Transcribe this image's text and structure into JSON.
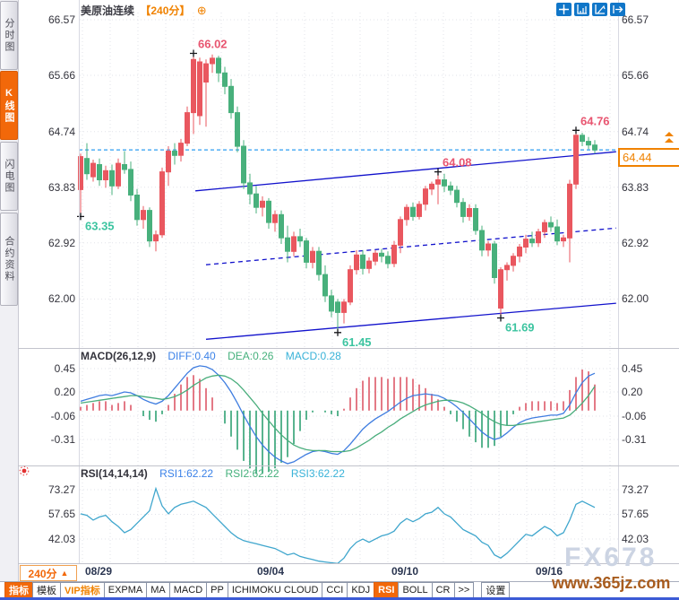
{
  "window": {
    "instrument": "美原油连续",
    "period": "【240分】",
    "add_icon": "circled-plus"
  },
  "colors": {
    "accent_orange": "#f2680a",
    "label_orange": "#f08200",
    "up_candle": "#e9575f",
    "down_candle": "#48b07c",
    "high_label": "#e85570",
    "low_label": "#3cc4a0",
    "current_price_line": "#2e9df2",
    "trend_line": "#1212cc",
    "diff_line": "#3f7de0",
    "dea_line": "#49ad7c",
    "rsi_line": "#3fa6cd",
    "hist_up": "#dd5868",
    "hist_down": "#2fa273",
    "icon_blue": "#1076c8"
  },
  "sidebar": {
    "items": [
      {
        "label": "分时图",
        "active": false
      },
      {
        "label": "K线图",
        "active": true
      },
      {
        "label": "闪电图",
        "active": false
      },
      {
        "label": "合约资料",
        "active": false
      }
    ]
  },
  "top_icons": [
    {
      "name": "crosshair-icon"
    },
    {
      "name": "scale-axis-icon"
    },
    {
      "name": "scale-bars-icon"
    },
    {
      "name": "exit-chart-icon"
    }
  ],
  "axes": {
    "main": [
      "66.57",
      "65.66",
      "64.74",
      "63.83",
      "62.92",
      "62.00"
    ],
    "macd": [
      "0.45",
      "0.20",
      "-0.06",
      "-0.31"
    ],
    "rsi": [
      "73.27",
      "57.65",
      "42.03"
    ],
    "dates": [
      "08/29",
      "09/04",
      "09/10",
      "09/16"
    ]
  },
  "macd_header": {
    "name": "MACD(26,12,9)",
    "diff": "DIFF:0.40",
    "dea": "DEA:0.26",
    "macd": "MACD:0.28"
  },
  "rsi_header": {
    "name": "RSI(14,14,14)",
    "rsi1": "RSI1:62.22",
    "rsi2": "RSI2:62.22",
    "rsi3": "RSI3:62.22"
  },
  "price_box": {
    "value": "64.44"
  },
  "period_button": {
    "label": "240分",
    "arrow": "▲"
  },
  "bottom_toolbar": {
    "items": [
      {
        "label": "指标",
        "state": "active"
      },
      {
        "label": "模板",
        "state": ""
      },
      {
        "label": "VIP指标",
        "state": "vip"
      },
      {
        "label": "EXPMA",
        "state": ""
      },
      {
        "label": "MA",
        "state": ""
      },
      {
        "label": "MACD",
        "state": ""
      },
      {
        "label": "PP",
        "state": ""
      },
      {
        "label": "ICHIMOKU CLOUD",
        "state": ""
      },
      {
        "label": "CCI",
        "state": ""
      },
      {
        "label": "KDJ",
        "state": ""
      },
      {
        "label": "RSI",
        "state": "active"
      },
      {
        "label": "BOLL",
        "state": ""
      },
      {
        "label": "CR",
        "state": ""
      },
      {
        "label": ">>",
        "state": ""
      },
      {
        "label": "设置",
        "state": "gap"
      }
    ]
  },
  "watermark": {
    "line1": "FX678",
    "line2": "www.365jz.com"
  },
  "chart_data": [
    {
      "type": "candlestick",
      "title": "美原油连续 240分",
      "ylim": [
        61.2,
        66.7
      ],
      "y_ticks": [
        66.57,
        65.66,
        64.74,
        63.83,
        62.92,
        62.0
      ],
      "x_ticks": [
        "08/29",
        "09/04",
        "09/10",
        "09/16"
      ],
      "current_price": 64.44,
      "ohlc": [
        [
          63.79,
          64.38,
          63.35,
          64.33
        ],
        [
          64.3,
          64.55,
          63.95,
          64.05
        ],
        [
          64.0,
          64.28,
          63.92,
          64.22
        ],
        [
          64.2,
          64.3,
          63.85,
          63.95
        ],
        [
          63.95,
          64.18,
          63.82,
          64.1
        ],
        [
          64.1,
          64.2,
          63.7,
          63.85
        ],
        [
          63.85,
          64.3,
          63.8,
          64.22
        ],
        [
          64.2,
          64.42,
          64.05,
          64.12
        ],
        [
          64.12,
          64.25,
          63.6,
          63.7
        ],
        [
          63.7,
          63.8,
          63.2,
          63.3
        ],
        [
          63.3,
          63.52,
          63.15,
          63.45
        ],
        [
          63.45,
          63.5,
          62.85,
          62.95
        ],
        [
          62.95,
          63.12,
          62.78,
          63.05
        ],
        [
          63.05,
          64.15,
          63.0,
          64.08
        ],
        [
          64.08,
          64.5,
          63.85,
          64.42
        ],
        [
          64.42,
          64.55,
          64.2,
          64.35
        ],
        [
          64.35,
          64.62,
          64.25,
          64.55
        ],
        [
          64.55,
          65.15,
          64.5,
          65.05
        ],
        [
          65.05,
          66.02,
          64.7,
          65.92
        ],
        [
          65.0,
          65.95,
          64.85,
          65.88
        ],
        [
          65.55,
          65.92,
          64.82,
          65.85
        ],
        [
          65.85,
          66.0,
          65.7,
          65.94
        ],
        [
          65.94,
          65.98,
          65.55,
          65.7
        ],
        [
          65.7,
          65.8,
          65.35,
          65.48
        ],
        [
          65.48,
          65.6,
          64.95,
          65.05
        ],
        [
          65.05,
          65.15,
          64.4,
          64.5
        ],
        [
          64.5,
          64.6,
          63.8,
          63.9
        ],
        [
          63.9,
          64.05,
          63.55,
          63.72
        ],
        [
          63.72,
          63.85,
          63.4,
          63.5
        ],
        [
          63.5,
          63.68,
          63.35,
          63.6
        ],
        [
          63.6,
          63.65,
          63.15,
          63.25
        ],
        [
          63.25,
          63.45,
          63.1,
          63.38
        ],
        [
          63.38,
          63.45,
          62.9,
          63.0
        ],
        [
          63.0,
          63.2,
          62.6,
          62.78
        ],
        [
          62.78,
          63.1,
          62.7,
          63.02
        ],
        [
          63.02,
          63.15,
          62.85,
          62.95
        ],
        [
          62.95,
          63.0,
          62.5,
          62.6
        ],
        [
          62.6,
          62.85,
          62.5,
          62.78
        ],
        [
          62.78,
          62.85,
          62.3,
          62.4
        ],
        [
          62.4,
          62.55,
          61.95,
          62.05
        ],
        [
          62.05,
          62.15,
          61.7,
          61.8
        ],
        [
          61.95,
          62.0,
          61.45,
          61.78
        ],
        [
          61.78,
          62.0,
          61.6,
          61.95
        ],
        [
          61.95,
          62.55,
          61.9,
          62.48
        ],
        [
          62.48,
          62.8,
          62.4,
          62.72
        ],
        [
          62.72,
          62.8,
          62.4,
          62.5
        ],
        [
          62.5,
          62.68,
          62.42,
          62.62
        ],
        [
          62.62,
          62.8,
          62.55,
          62.75
        ],
        [
          62.75,
          62.82,
          62.6,
          62.7
        ],
        [
          62.7,
          62.78,
          62.5,
          62.58
        ],
        [
          62.58,
          62.95,
          62.52,
          62.88
        ],
        [
          62.88,
          63.35,
          62.75,
          63.3
        ],
        [
          63.3,
          63.55,
          63.2,
          63.5
        ],
        [
          63.5,
          63.58,
          63.28,
          63.35
        ],
        [
          63.35,
          63.6,
          63.3,
          63.55
        ],
        [
          63.55,
          63.85,
          63.45,
          63.8
        ],
        [
          63.8,
          63.92,
          63.7,
          63.88
        ],
        [
          63.88,
          64.08,
          63.55,
          63.95
        ],
        [
          63.95,
          64.05,
          63.75,
          63.85
        ],
        [
          63.85,
          63.92,
          63.7,
          63.78
        ],
        [
          63.78,
          63.85,
          63.5,
          63.58
        ],
        [
          63.58,
          63.65,
          63.25,
          63.35
        ],
        [
          63.35,
          63.55,
          63.28,
          63.48
        ],
        [
          63.48,
          63.55,
          63.05,
          63.12
        ],
        [
          63.12,
          63.2,
          62.7,
          62.8
        ],
        [
          62.8,
          62.95,
          62.7,
          62.9
        ],
        [
          62.9,
          62.95,
          62.25,
          62.35
        ],
        [
          61.85,
          62.52,
          61.69,
          62.48
        ],
        [
          62.48,
          62.6,
          62.3,
          62.55
        ],
        [
          62.55,
          62.75,
          62.45,
          62.7
        ],
        [
          62.7,
          62.9,
          62.6,
          62.85
        ],
        [
          62.85,
          63.05,
          62.75,
          62.98
        ],
        [
          62.98,
          63.1,
          62.85,
          62.92
        ],
        [
          62.92,
          63.15,
          62.85,
          63.1
        ],
        [
          63.1,
          63.3,
          63.0,
          63.25
        ],
        [
          63.25,
          63.35,
          63.1,
          63.18
        ],
        [
          63.18,
          63.3,
          62.88,
          62.95
        ],
        [
          62.95,
          63.05,
          62.85,
          63.0
        ],
        [
          63.0,
          63.95,
          62.6,
          63.88
        ],
        [
          63.88,
          64.76,
          63.8,
          64.68
        ],
        [
          64.68,
          64.72,
          64.5,
          64.58
        ],
        [
          64.58,
          64.65,
          64.45,
          64.52
        ],
        [
          64.52,
          64.6,
          64.38,
          64.44
        ]
      ],
      "annotations": [
        {
          "index": 18,
          "price": 66.02,
          "text": "66.02",
          "kind": "high"
        },
        {
          "index": 0,
          "price": 63.35,
          "text": "63.35",
          "kind": "low"
        },
        {
          "index": 41,
          "price": 61.45,
          "text": "61.45",
          "kind": "low"
        },
        {
          "index": 67,
          "price": 61.69,
          "text": "61.69",
          "kind": "low"
        },
        {
          "index": 57,
          "price": 64.08,
          "text": "64.08",
          "kind": "high"
        },
        {
          "index": 79,
          "price": 64.76,
          "text": "64.76",
          "kind": "high"
        }
      ],
      "trendlines": [
        {
          "from_index": 18.3,
          "from_price": 63.77,
          "to_index": 85.4,
          "to_price": 64.41,
          "style": "solid"
        },
        {
          "from_index": 20.0,
          "from_price": 61.34,
          "to_index": 85.4,
          "to_price": 61.93,
          "style": "solid"
        },
        {
          "from_index": 20.0,
          "from_price": 62.56,
          "to_index": 85.4,
          "to_price": 63.16,
          "style": "dashed"
        }
      ]
    },
    {
      "type": "macd",
      "params": "(26,12,9)",
      "y_ticks": [
        0.45,
        0.2,
        -0.06,
        -0.31
      ],
      "current": {
        "diff": 0.4,
        "dea": 0.26,
        "macd": 0.28
      },
      "histogram_rule": "2*(diff-dea)",
      "diff": [
        0.1,
        0.12,
        0.14,
        0.16,
        0.17,
        0.16,
        0.18,
        0.2,
        0.19,
        0.16,
        0.12,
        0.09,
        0.07,
        0.1,
        0.16,
        0.24,
        0.32,
        0.4,
        0.46,
        0.48,
        0.47,
        0.44,
        0.38,
        0.3,
        0.2,
        0.08,
        -0.05,
        -0.17,
        -0.28,
        -0.37,
        -0.44,
        -0.5,
        -0.54,
        -0.57,
        -0.55,
        -0.51,
        -0.47,
        -0.44,
        -0.43,
        -0.44,
        -0.46,
        -0.47,
        -0.43,
        -0.36,
        -0.28,
        -0.2,
        -0.14,
        -0.09,
        -0.05,
        -0.01,
        0.04,
        0.09,
        0.13,
        0.16,
        0.17,
        0.18,
        0.17,
        0.16,
        0.13,
        0.09,
        0.04,
        -0.02,
        -0.09,
        -0.16,
        -0.23,
        -0.28,
        -0.31,
        -0.29,
        -0.24,
        -0.18,
        -0.13,
        -0.1,
        -0.08,
        -0.07,
        -0.06,
        -0.05,
        -0.05,
        -0.03,
        0.06,
        0.19,
        0.3,
        0.37,
        0.4
      ],
      "dea": [
        0.08,
        0.09,
        0.1,
        0.11,
        0.12,
        0.13,
        0.14,
        0.15,
        0.16,
        0.16,
        0.15,
        0.14,
        0.13,
        0.12,
        0.13,
        0.15,
        0.18,
        0.22,
        0.27,
        0.31,
        0.35,
        0.37,
        0.38,
        0.37,
        0.34,
        0.29,
        0.22,
        0.14,
        0.06,
        -0.03,
        -0.11,
        -0.19,
        -0.26,
        -0.32,
        -0.37,
        -0.4,
        -0.42,
        -0.43,
        -0.43,
        -0.43,
        -0.44,
        -0.44,
        -0.44,
        -0.43,
        -0.4,
        -0.36,
        -0.32,
        -0.27,
        -0.23,
        -0.18,
        -0.14,
        -0.09,
        -0.05,
        -0.01,
        0.03,
        0.06,
        0.08,
        0.1,
        0.11,
        0.11,
        0.1,
        0.08,
        0.05,
        0.01,
        -0.03,
        -0.08,
        -0.12,
        -0.15,
        -0.16,
        -0.16,
        -0.15,
        -0.14,
        -0.13,
        -0.12,
        -0.11,
        -0.1,
        -0.09,
        -0.08,
        -0.05,
        0.01,
        0.08,
        0.16,
        0.26
      ]
    },
    {
      "type": "rsi",
      "params": "(14,14,14)",
      "y_ticks": [
        73.27,
        57.65,
        42.03
      ],
      "current": {
        "rsi1": 62.22,
        "rsi2": 62.22,
        "rsi3": 62.22
      },
      "values": [
        58,
        57,
        54,
        56,
        57,
        53,
        50,
        46,
        48,
        52,
        56,
        60,
        74,
        63,
        58,
        62,
        64,
        65,
        66,
        64,
        62,
        58,
        54,
        50,
        46,
        43,
        41,
        40,
        39,
        38,
        37,
        36,
        34,
        32,
        33,
        31,
        30,
        29,
        28,
        27.5,
        27,
        26.5,
        30,
        36,
        40,
        42,
        40,
        42,
        44,
        45,
        47,
        52,
        55,
        53,
        55,
        58,
        59,
        62,
        58,
        56,
        52,
        48,
        46,
        44,
        40,
        38,
        32,
        30,
        33,
        37,
        41,
        45,
        44,
        47,
        50,
        48,
        44,
        46,
        54,
        64,
        66,
        64,
        62
      ]
    }
  ]
}
